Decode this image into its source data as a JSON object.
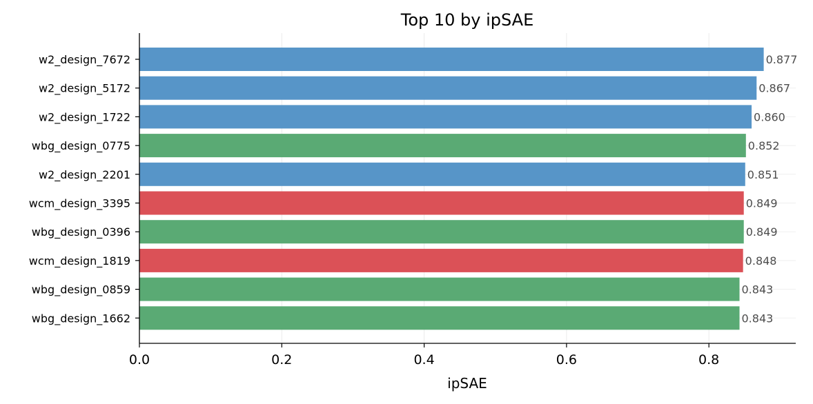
{
  "chart_data": {
    "type": "bar",
    "orientation": "horizontal",
    "title": "Top 10 by ipSAE",
    "xlabel": "ipSAE",
    "ylabel": "",
    "xlim": [
      0,
      0.922
    ],
    "x_ticks": [
      "0.0",
      "0.2",
      "0.4",
      "0.6",
      "0.8"
    ],
    "grid": true,
    "categories": [
      "w2_design_7672",
      "w2_design_5172",
      "w2_design_1722",
      "wbg_design_0775",
      "w2_design_2201",
      "wcm_design_3395",
      "wbg_design_0396",
      "wcm_design_1819",
      "wbg_design_0859",
      "wbg_design_1662"
    ],
    "values": [
      0.877,
      0.867,
      0.86,
      0.852,
      0.851,
      0.849,
      0.849,
      0.848,
      0.843,
      0.843
    ],
    "value_labels": [
      "0.877",
      "0.867",
      "0.860",
      "0.852",
      "0.851",
      "0.849",
      "0.849",
      "0.848",
      "0.843",
      "0.843"
    ],
    "group_colors": {
      "w2": "#5795c8",
      "wbg": "#5aaa74",
      "wcm": "#db5157"
    }
  }
}
